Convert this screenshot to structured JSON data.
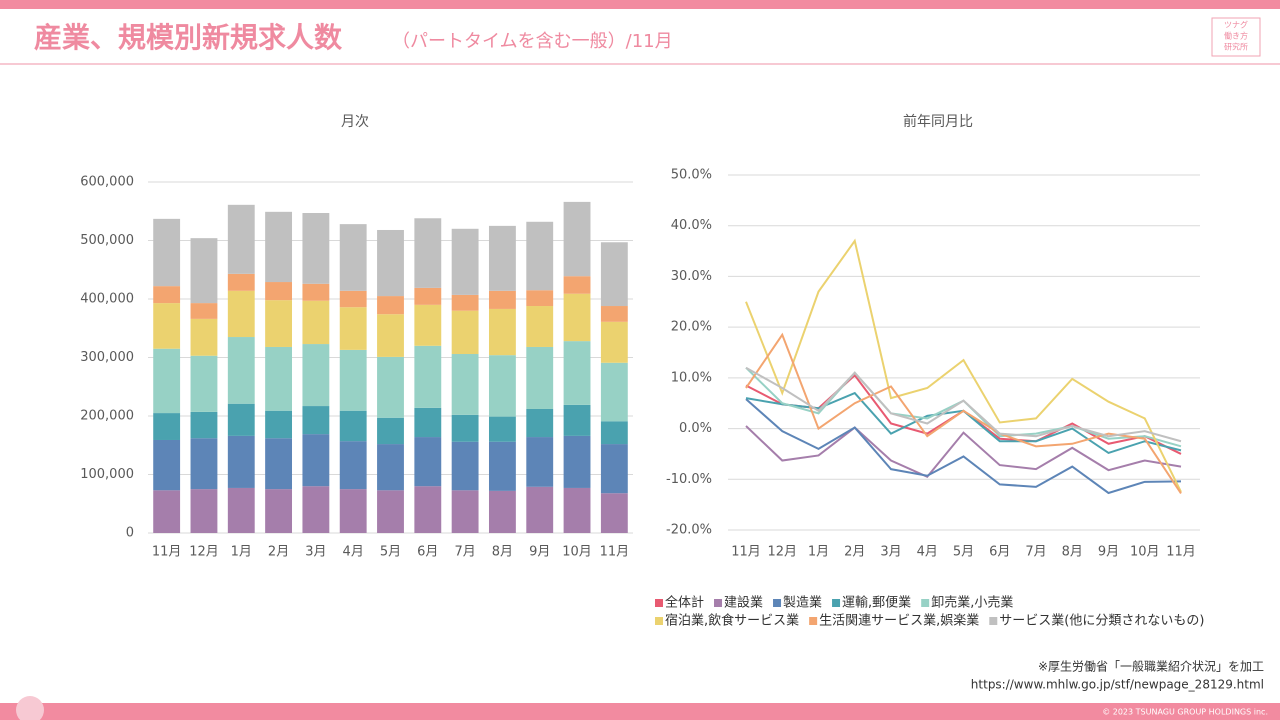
{
  "header": {
    "title": "産業、規模別新規求人数",
    "subtitle": "（パートタイムを含む一般）/11月",
    "logo": [
      "ツナグ",
      "働き方",
      "研究所"
    ]
  },
  "chart_data": [
    {
      "type": "bar",
      "stacked": true,
      "title": "月次",
      "categories": [
        "11月",
        "12月",
        "1月",
        "2月",
        "3月",
        "4月",
        "5月",
        "6月",
        "7月",
        "8月",
        "9月",
        "10月",
        "11月"
      ],
      "ylim": [
        0,
        600000
      ],
      "yticks": [
        0,
        {
          "value": 100000,
          "label": "100,000"
        },
        {
          "value": 200000,
          "label": "200,000"
        },
        {
          "value": 300000,
          "label": "300,000"
        },
        {
          "value": 400000,
          "label": "400,000"
        },
        {
          "value": 500000,
          "label": "500,000"
        },
        {
          "value": 600000,
          "label": "600,000"
        }
      ],
      "grid": true,
      "series": [
        {
          "color": "#a57eab",
          "values": [
            73000,
            75000,
            77000,
            75000,
            80000,
            75000,
            73000,
            80000,
            73000,
            72000,
            79000,
            77000,
            68000
          ]
        },
        {
          "color": "#5d85b7",
          "values": [
            86000,
            87000,
            89000,
            87000,
            89000,
            82000,
            79000,
            84000,
            83000,
            84000,
            85000,
            89000,
            84000
          ]
        },
        {
          "color": "#4aa2af",
          "values": [
            46000,
            45000,
            55000,
            47000,
            48000,
            52000,
            45000,
            50000,
            46000,
            43000,
            48000,
            53000,
            39000
          ]
        },
        {
          "color": "#97d1c5",
          "values": [
            110000,
            96000,
            114000,
            109000,
            106000,
            104000,
            104000,
            106000,
            104000,
            105000,
            106000,
            109000,
            100000
          ]
        },
        {
          "color": "#ebd26f",
          "values": [
            78000,
            63000,
            79000,
            80000,
            74000,
            73000,
            73000,
            70000,
            74000,
            79000,
            70000,
            81000,
            70000
          ]
        },
        {
          "color": "#f3a570",
          "values": [
            29000,
            27000,
            29000,
            31000,
            29000,
            28000,
            31000,
            29000,
            27000,
            31000,
            27000,
            30000,
            27000
          ]
        },
        {
          "color": "#c0c0c0",
          "values": [
            115000,
            111000,
            118000,
            120000,
            121000,
            114000,
            113000,
            119000,
            113000,
            111000,
            117000,
            127000,
            109000
          ]
        }
      ]
    },
    {
      "type": "line",
      "title": "前年同月比",
      "categories": [
        "11月",
        "12月",
        "1月",
        "2月",
        "3月",
        "4月",
        "5月",
        "6月",
        "7月",
        "8月",
        "9月",
        "10月",
        "11月"
      ],
      "ylim": [
        -20,
        50
      ],
      "yticks": [
        {
          "value": -20,
          "label": "-20.0%"
        },
        {
          "value": -10,
          "label": "-10.0%"
        },
        {
          "value": 0,
          "label": "0.0%"
        },
        {
          "value": 10,
          "label": "10.0%"
        },
        {
          "value": 20,
          "label": "20.0%"
        },
        {
          "value": 30,
          "label": "30.0%"
        },
        {
          "value": 40,
          "label": "40.0%"
        },
        {
          "value": 50,
          "label": "50.0%"
        }
      ],
      "grid": true,
      "legend": "bottom",
      "series": [
        {
          "name": "全体計",
          "color": "#e85a71",
          "values": [
            8.5,
            4.8,
            4,
            10.5,
            1,
            -1,
            3.5,
            -2,
            -2.5,
            1,
            -3,
            -1.5,
            -5
          ]
        },
        {
          "name": "建設業",
          "color": "#a57eab",
          "values": [
            0.5,
            -6.3,
            -5.3,
            0.2,
            -6.3,
            -9.5,
            -0.8,
            -7.2,
            -8,
            -3.8,
            -8.2,
            -6.3,
            -7.5
          ]
        },
        {
          "name": "製造業",
          "color": "#5d85b7",
          "values": [
            5.8,
            -0.5,
            -4,
            0.2,
            -8,
            -9.3,
            -5.5,
            -11,
            -11.5,
            -7.5,
            -12.7,
            -10.5,
            -10.4
          ]
        },
        {
          "name": "運輸,郵便業",
          "color": "#4aa2af",
          "values": [
            6,
            4.8,
            4,
            7,
            -1,
            2.5,
            3.5,
            -2.5,
            -2.5,
            0,
            -4.8,
            -2.5,
            -4.3
          ]
        },
        {
          "name": "卸売業,小売業",
          "color": "#97d1c5",
          "values": [
            12,
            5,
            3,
            11,
            3,
            2,
            5.5,
            -1.5,
            -1,
            0.5,
            -2,
            -1.5,
            -3.5
          ]
        },
        {
          "name": "宿泊業,飲食サービス業",
          "color": "#ebd26f",
          "values": [
            25,
            7,
            27,
            37,
            6,
            8,
            13.5,
            1.2,
            2,
            9.8,
            5.3,
            2,
            -12.5
          ]
        },
        {
          "name": "生活関連サービス業,娯楽業",
          "color": "#f3a570",
          "values": [
            8,
            18.5,
            0,
            5,
            8.3,
            -1.5,
            3.5,
            -1,
            -3.5,
            -3,
            -1,
            -2,
            -12.8
          ]
        },
        {
          "name": "サービス業(他に分類されないもの)",
          "color": "#c0c0c0",
          "values": [
            12,
            8,
            3.5,
            11,
            3,
            1,
            5.5,
            -1,
            -1.5,
            0.5,
            -1.5,
            -0.5,
            -2.5
          ]
        }
      ]
    }
  ],
  "source": [
    "※厚生労働省「一般職業紹介状況」を加工",
    "https://www.mhlw.go.jp/stf/newpage_28129.html"
  ],
  "footer": "© 2023 TSUNAGU GROUP HOLDINGS inc."
}
